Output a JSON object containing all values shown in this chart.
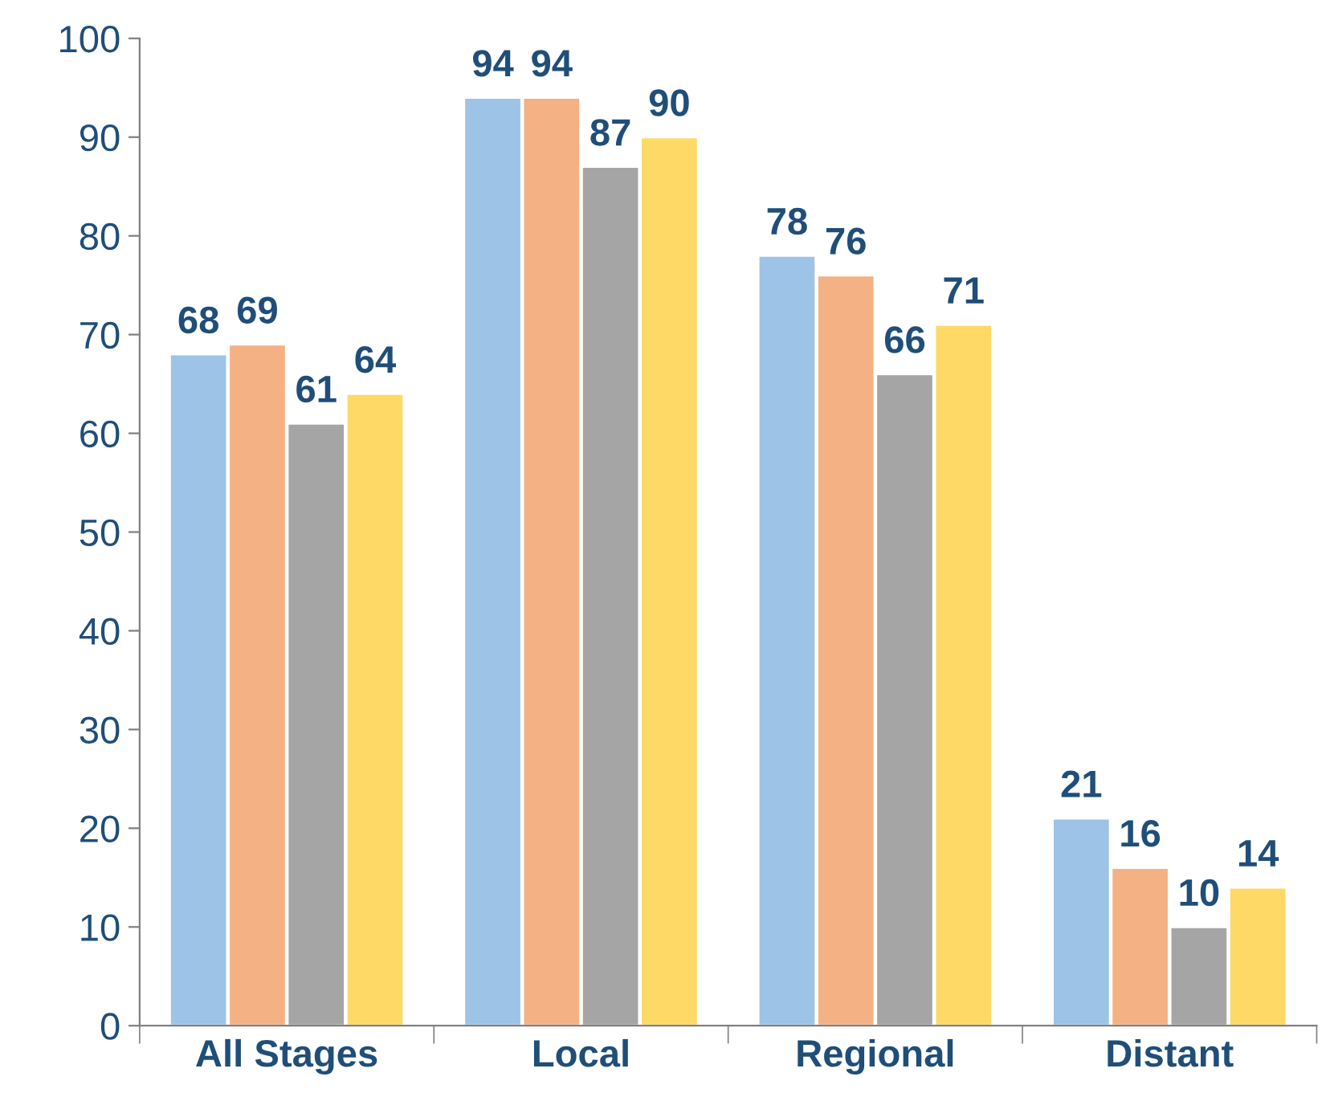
{
  "chart_data": {
    "type": "bar",
    "categories": [
      "All Stages",
      "Local",
      "Regional",
      "Distant"
    ],
    "series": [
      {
        "color": "#9dc3e6",
        "values": [
          68,
          94,
          78,
          21
        ]
      },
      {
        "color": "#f4b183",
        "values": [
          69,
          94,
          76,
          16
        ]
      },
      {
        "color": "#a5a5a5",
        "values": [
          61,
          87,
          66,
          10
        ]
      },
      {
        "color": "#ffd966",
        "values": [
          64,
          90,
          71,
          14
        ]
      }
    ],
    "ylim": [
      0,
      100
    ],
    "yticks": [
      0,
      10,
      20,
      30,
      40,
      50,
      60,
      70,
      80,
      90,
      100
    ],
    "data_labels": true,
    "grid": false,
    "legend": false
  }
}
